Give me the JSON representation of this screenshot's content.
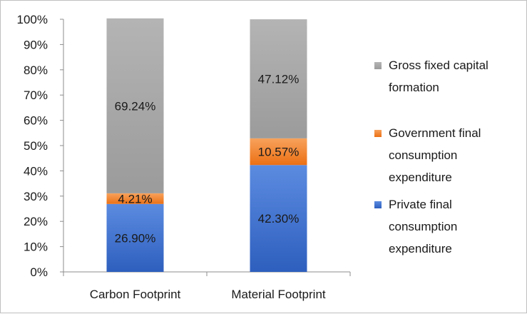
{
  "chart_data": {
    "type": "bar",
    "stacked": true,
    "categories": [
      "Carbon Footprint",
      "Material Footprint"
    ],
    "series": [
      {
        "name": "Private final consumption expenditure",
        "values": [
          26.9,
          42.3
        ],
        "labels": [
          "26.90%",
          "42.30%"
        ],
        "color": "#3f6fd0"
      },
      {
        "name": "Government final consumption expenditure",
        "values": [
          4.21,
          10.57
        ],
        "labels": [
          "4.21%",
          "10.57%"
        ],
        "color": "#f07b22"
      },
      {
        "name": "Gross fixed capital formation",
        "values": [
          69.24,
          47.12
        ],
        "labels": [
          "69.24%",
          "47.12%"
        ],
        "color": "#a9a9a9"
      }
    ],
    "ylim": [
      0,
      100
    ],
    "yticks": [
      "0%",
      "10%",
      "20%",
      "30%",
      "40%",
      "50%",
      "60%",
      "70%",
      "80%",
      "90%",
      "100%"
    ],
    "title": "",
    "xlabel": "",
    "ylabel": "",
    "grid": false,
    "legend_position": "right"
  }
}
